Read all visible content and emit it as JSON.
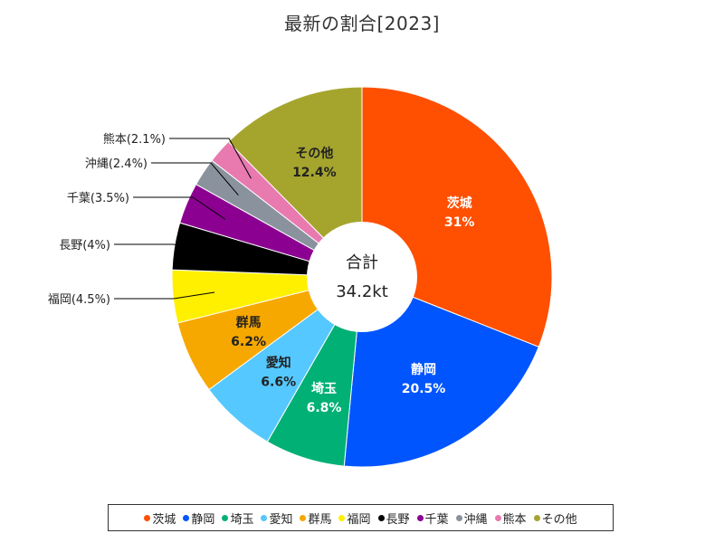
{
  "chart_data": {
    "type": "pie",
    "title": "最新の割合[2023]",
    "center_label": "合計",
    "center_value": "34.2kt",
    "slices": [
      {
        "name": "茨城",
        "value": 31,
        "label": "31%",
        "color": "#FF4F00",
        "label_style": "inside-white"
      },
      {
        "name": "静岡",
        "value": 20.5,
        "label": "20.5%",
        "color": "#0055FF",
        "label_style": "inside-white"
      },
      {
        "name": "埼玉",
        "value": 6.8,
        "label": "6.8%",
        "color": "#00B075",
        "label_style": "inside-white"
      },
      {
        "name": "愛知",
        "value": 6.6,
        "label": "6.6%",
        "color": "#55C8FF",
        "label_style": "inside-dark"
      },
      {
        "name": "群馬",
        "value": 6.2,
        "label": "6.2%",
        "color": "#F7A800",
        "label_style": "inside-dark"
      },
      {
        "name": "福岡",
        "value": 4.5,
        "label": "福岡(4.5%)",
        "color": "#FFF000",
        "label_style": "outside"
      },
      {
        "name": "長野",
        "value": 4,
        "label": "長野(4%)",
        "color": "#000000",
        "label_style": "outside"
      },
      {
        "name": "千葉",
        "value": 3.5,
        "label": "千葉(3.5%)",
        "color": "#8B0090",
        "label_style": "outside"
      },
      {
        "name": "沖縄",
        "value": 2.4,
        "label": "沖縄(2.4%)",
        "color": "#8A929E",
        "label_style": "outside"
      },
      {
        "name": "熊本",
        "value": 2.1,
        "label": "熊本(2.1%)",
        "color": "#E87AB0",
        "label_style": "outside"
      },
      {
        "name": "その他",
        "value": 12.4,
        "label": "12.4%",
        "color": "#A5A52E",
        "label_style": "inside-dark"
      }
    ],
    "legend_position": "bottom"
  }
}
